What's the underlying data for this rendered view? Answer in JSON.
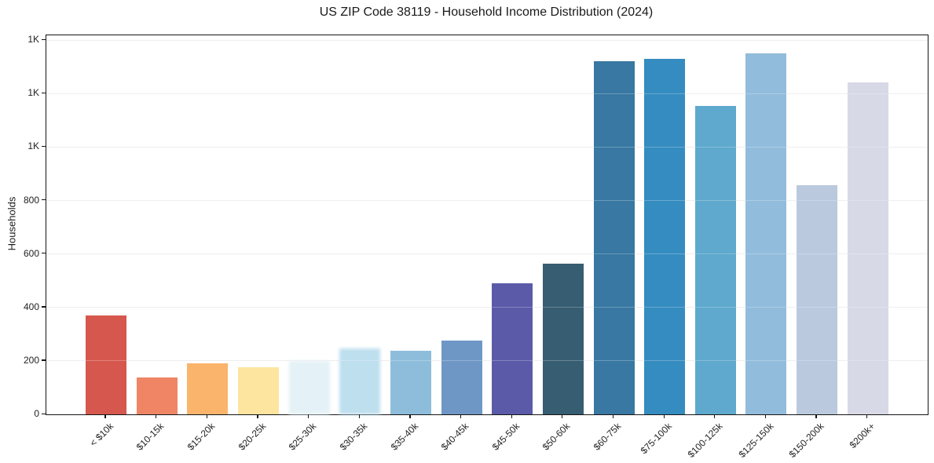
{
  "chart_data": {
    "type": "bar",
    "title": "US ZIP Code 38119 - Household Income Distribution (2024)",
    "xlabel": "",
    "ylabel": "Households",
    "categories": [
      "< $10k",
      "$10-15k",
      "$15-20k",
      "$20-25k",
      "$25-30k",
      "$30-35k",
      "$35-40k",
      "$40-45k",
      "$45-50k",
      "$50-60k",
      "$60-75k",
      "$75-100k",
      "$100-125k",
      "$125-150k",
      "$150-200k",
      "$200k+"
    ],
    "values": [
      370,
      137,
      192,
      177,
      201,
      246,
      238,
      277,
      491,
      563,
      1322,
      1331,
      1153,
      1351,
      858,
      1243
    ],
    "bar_colors": [
      "#d6574e",
      "#f08566",
      "#fab46c",
      "#fde49f",
      "#e4f1f6",
      "#bedfee",
      "#8ebddc",
      "#6f97c6",
      "#5b5aa9",
      "#365d71",
      "#3878a2",
      "#358cc0",
      "#5ea9cd",
      "#92bcdb",
      "#bac9de",
      "#d8d9e7"
    ],
    "soft_blur_categories": [
      "$25-30k",
      "$30-35k"
    ],
    "ylim": [
      0,
      1418
    ],
    "yticks": [
      {
        "value": 0,
        "label": "0"
      },
      {
        "value": 200,
        "label": "200"
      },
      {
        "value": 400,
        "label": "400"
      },
      {
        "value": 600,
        "label": "600"
      },
      {
        "value": 800,
        "label": "800"
      },
      {
        "value": 1000,
        "label": "1K"
      },
      {
        "value": 1200,
        "label": "1K"
      },
      {
        "value": 1400,
        "label": "1K"
      }
    ],
    "grid": "horizontal",
    "legend": "none",
    "background_color": "#ffffff",
    "gridline_color": "#e8e8e8",
    "spine_color": "#151515"
  }
}
